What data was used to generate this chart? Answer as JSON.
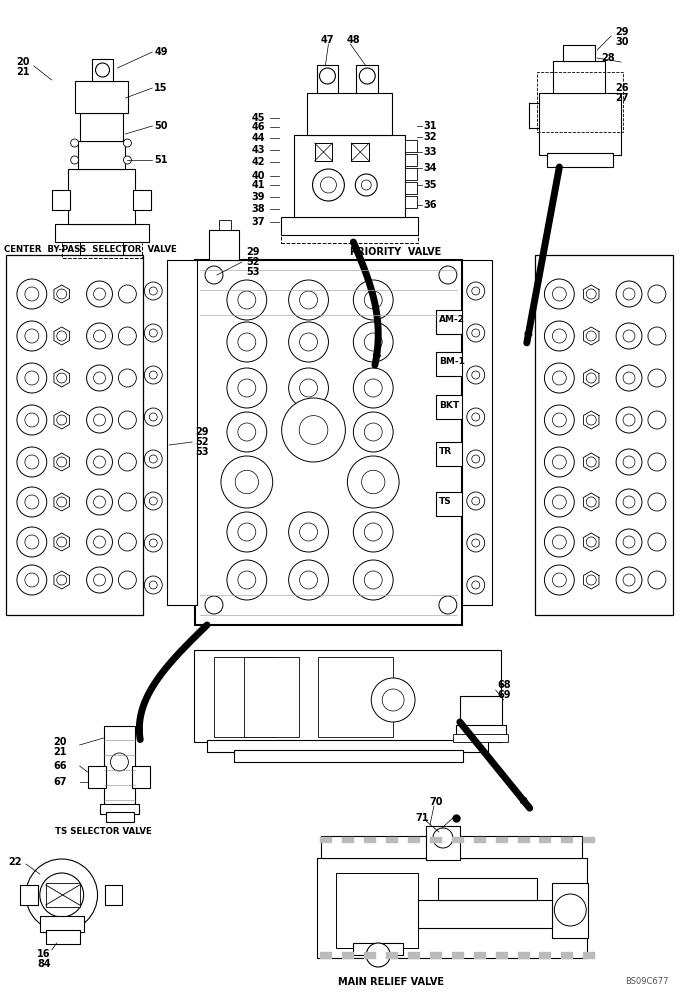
{
  "bg_color": "#ffffff",
  "line_color": "#000000",
  "fig_width": 6.8,
  "fig_height": 10.0,
  "labels": {
    "center_bypass": "CENTER  BY-PASS  SELECTOR  VALVE",
    "priority": "PRIORITY  VALVE",
    "ts_selector": "TS SELECTOR VALVE",
    "main_relief": "MAIN RELIEF VALVE",
    "watermark": "BS09C677",
    "am2": "AM-2",
    "bm1": "BM-1",
    "bkt": "BKT",
    "tr": "TR",
    "ts": "TS"
  }
}
